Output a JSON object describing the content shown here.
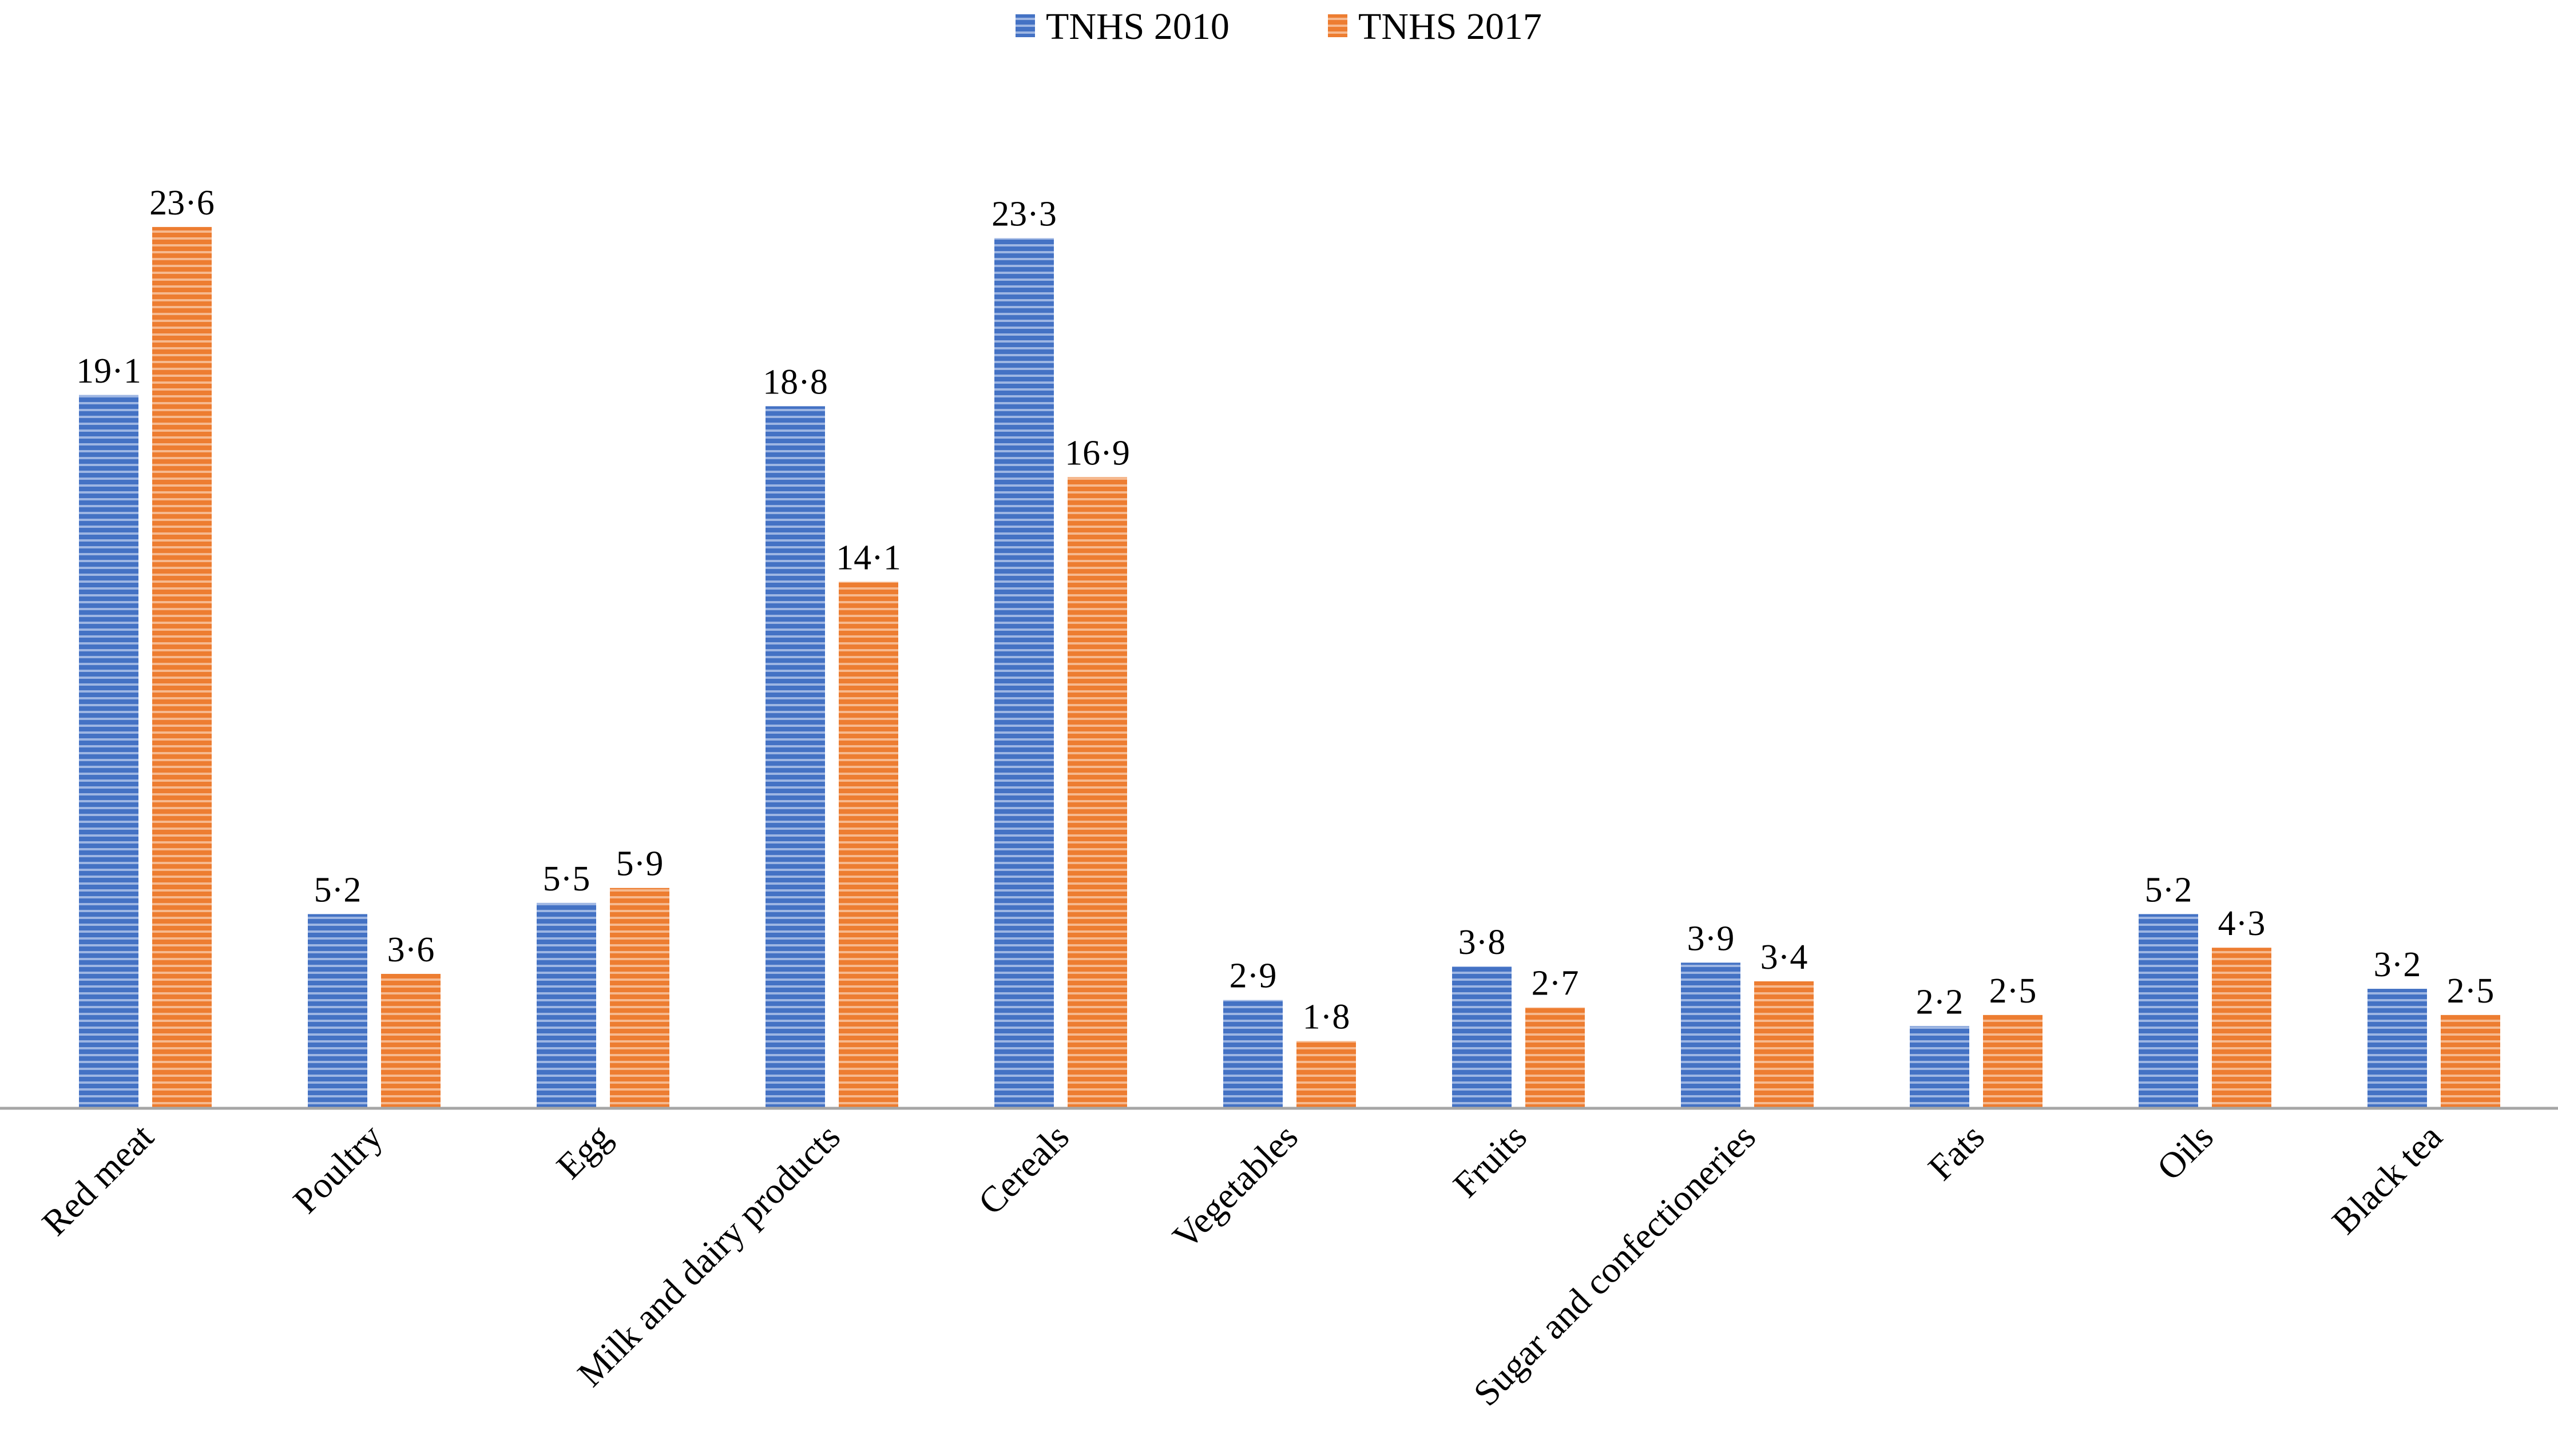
{
  "chart_data": {
    "type": "bar",
    "title": "",
    "xlabel": "",
    "ylabel": "",
    "ylim": [
      0,
      25
    ],
    "grid": false,
    "legend_position": "top-center",
    "categories": [
      "Red meat",
      "Poultry",
      "Egg",
      "Milk and dairy products",
      "Cereals",
      "Vegetables",
      "Fruits",
      "Sugar and confectioneries",
      "Fats",
      "Oils",
      "Black tea"
    ],
    "series": [
      {
        "name": "TNHS 2010",
        "color": "#4472C4",
        "values": [
          19.1,
          5.2,
          5.5,
          18.8,
          23.3,
          2.9,
          3.8,
          3.9,
          2.2,
          5.2,
          3.2
        ],
        "labels": [
          "19·1",
          "5·2",
          "5·5",
          "18·8",
          "23·3",
          "2·9",
          "3·8",
          "3·9",
          "2·2",
          "5·2",
          "3·2"
        ]
      },
      {
        "name": "TNHS 2017",
        "color": "#ED7D31",
        "values": [
          23.6,
          3.6,
          5.9,
          14.1,
          16.9,
          1.8,
          2.7,
          3.4,
          2.5,
          4.3,
          2.5
        ],
        "labels": [
          "23·6",
          "3·6",
          "5·9",
          "14·1",
          "16·9",
          "1·8",
          "2·7",
          "3·4",
          "2·5",
          "4·3",
          "2·5"
        ]
      }
    ]
  }
}
